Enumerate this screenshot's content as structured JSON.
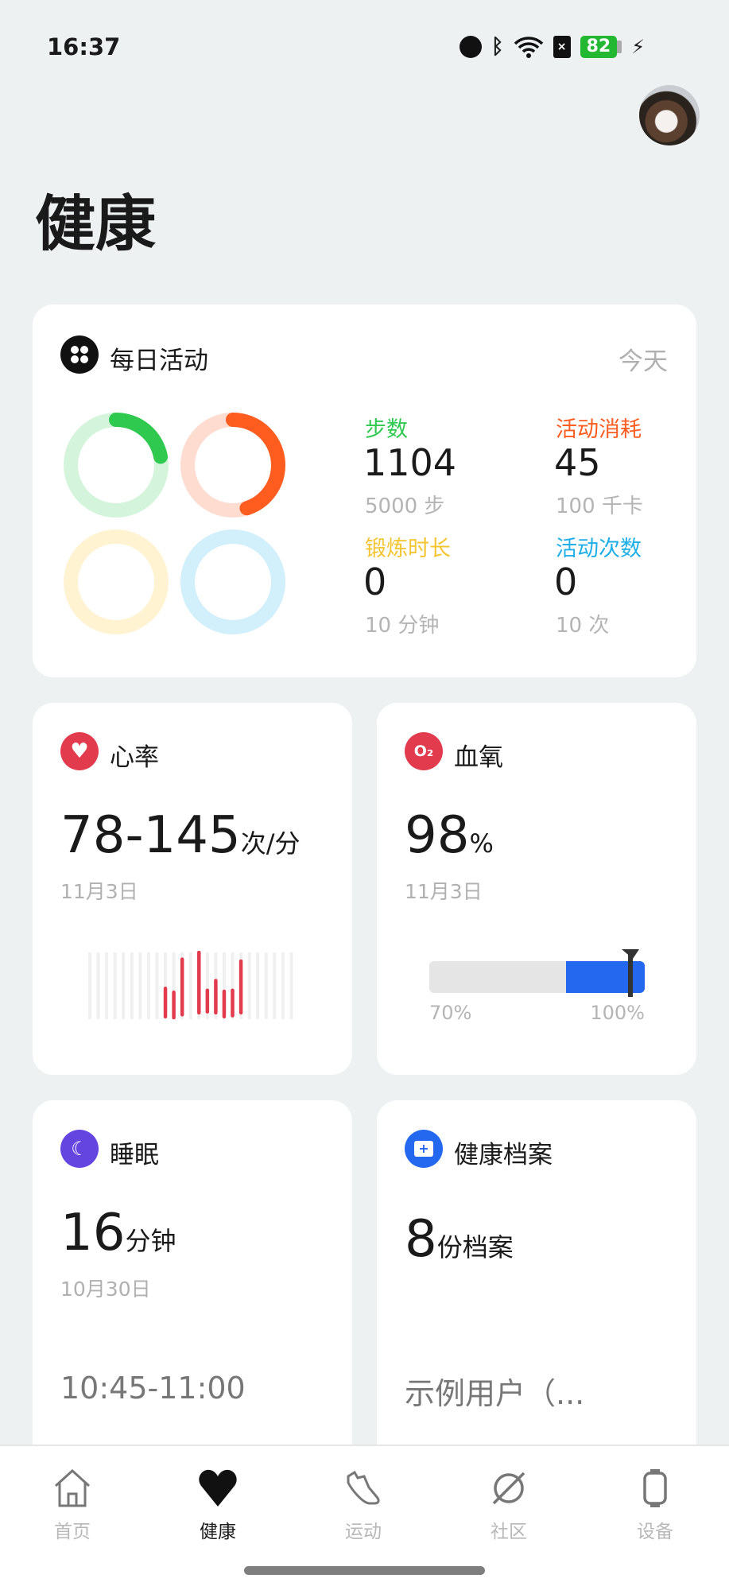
{
  "status_bar": {
    "time": "16:37",
    "battery": "82",
    "icons": [
      "speedometer-icon",
      "bluetooth-icon",
      "wifi-icon",
      "sim-off-icon",
      "battery-icon",
      "charging-icon"
    ]
  },
  "header": {
    "title": "健康",
    "avatar": "cat-avatar"
  },
  "colors": {
    "steps": "#2ec94e",
    "calories": "#ff5c1f",
    "exercise": "#f5c531",
    "activity": "#1eaee8",
    "heart": "#e23b4e",
    "oxygen_fill": "#2468f0",
    "sleep": "#6445e0",
    "archive": "#2468f0"
  },
  "daily": {
    "title": "每日活动",
    "period": "今天",
    "icon": "activity-rings-icon",
    "stats": [
      {
        "label": "步数",
        "value": "1104",
        "goal": "5000 步",
        "progress": 0.22
      },
      {
        "label": "活动消耗",
        "value": "45",
        "goal": "100 千卡",
        "progress": 0.45
      },
      {
        "label": "锻炼时长",
        "value": "0",
        "goal": "10 分钟",
        "progress": 0
      },
      {
        "label": "活动次数",
        "value": "0",
        "goal": "10 次",
        "progress": 0
      }
    ]
  },
  "heart": {
    "title": "心率",
    "icon": "heart-icon",
    "value": "78-145",
    "unit": "次/分",
    "date": "11月3日",
    "chart_data": {
      "type": "bar",
      "slots": 25,
      "ranges": [
        {
          "slot": 9,
          "min": 79,
          "max": 108
        },
        {
          "slot": 10,
          "min": 78,
          "max": 104
        },
        {
          "slot": 11,
          "min": 81,
          "max": 138
        },
        {
          "slot": 13,
          "min": 83,
          "max": 145
        },
        {
          "slot": 14,
          "min": 84,
          "max": 106
        },
        {
          "slot": 15,
          "min": 83,
          "max": 116
        },
        {
          "slot": 16,
          "min": 79,
          "max": 105
        },
        {
          "slot": 17,
          "min": 80,
          "max": 106
        },
        {
          "slot": 18,
          "min": 83,
          "max": 136
        }
      ],
      "ylim": [
        78,
        145
      ]
    }
  },
  "oxygen": {
    "title": "血氧",
    "icon": "o2-icon",
    "value": "98",
    "unit": "%",
    "date": "11月3日",
    "scale_min_label": "70%",
    "scale_max_label": "100%",
    "range_start": 89,
    "marker": 98,
    "min": 70,
    "max": 100
  },
  "sleep": {
    "title": "睡眠",
    "icon": "moon-sleep-icon",
    "value": "16",
    "unit": "分钟",
    "date": "10月30日",
    "time_range": "10:45-11:00"
  },
  "archive": {
    "title": "健康档案",
    "icon": "folder-plus-icon",
    "value": "8",
    "unit": "份档案",
    "user": "示例用户（..."
  },
  "nav": [
    {
      "label": "首页",
      "icon": "home-icon"
    },
    {
      "label": "健康",
      "icon": "heart-icon",
      "active": true
    },
    {
      "label": "运动",
      "icon": "shoe-icon"
    },
    {
      "label": "社区",
      "icon": "planet-icon"
    },
    {
      "label": "设备",
      "icon": "watch-icon"
    }
  ]
}
